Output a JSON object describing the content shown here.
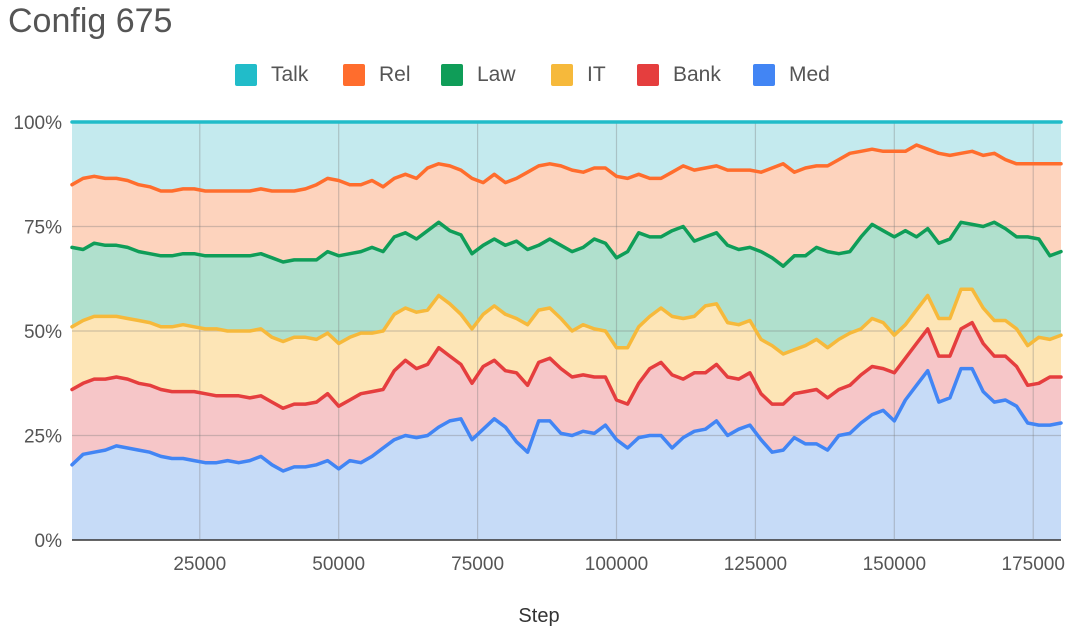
{
  "title": "Config 675",
  "chart_data": {
    "type": "area",
    "stacked": true,
    "percent": true,
    "title": "Config 675",
    "xlabel": "Step",
    "ylabel": "",
    "xlim": [
      2000,
      180000
    ],
    "ylim": [
      0,
      100
    ],
    "x_ticks": [
      25000,
      50000,
      75000,
      100000,
      125000,
      150000,
      175000
    ],
    "y_ticks": [
      "0%",
      "25%",
      "50%",
      "75%",
      "100%"
    ],
    "grid": true,
    "legend_position": "top",
    "x": [
      2000,
      4000,
      6000,
      8000,
      10000,
      12000,
      14000,
      16000,
      18000,
      20000,
      22000,
      24000,
      26000,
      28000,
      30000,
      32000,
      34000,
      36000,
      38000,
      40000,
      42000,
      44000,
      46000,
      48000,
      50000,
      52000,
      54000,
      56000,
      58000,
      60000,
      62000,
      64000,
      66000,
      68000,
      70000,
      72000,
      74000,
      76000,
      78000,
      80000,
      82000,
      84000,
      86000,
      88000,
      90000,
      92000,
      94000,
      96000,
      98000,
      100000,
      102000,
      104000,
      106000,
      108000,
      110000,
      112000,
      114000,
      116000,
      118000,
      120000,
      122000,
      124000,
      126000,
      128000,
      130000,
      132000,
      134000,
      136000,
      138000,
      140000,
      142000,
      144000,
      146000,
      148000,
      150000,
      152000,
      154000,
      156000,
      158000,
      160000,
      162000,
      164000,
      166000,
      168000,
      170000,
      172000,
      174000,
      176000,
      178000,
      180000
    ],
    "cumulative_top_boundaries": {
      "Med": [
        18,
        20.5,
        21,
        21.5,
        22.5,
        22,
        21.5,
        21,
        20,
        19.5,
        19.5,
        19,
        18.5,
        18.5,
        19,
        18.5,
        19,
        20,
        18,
        16.5,
        17.5,
        17.5,
        18,
        19,
        17,
        19,
        18.5,
        20,
        22,
        24,
        25,
        24.5,
        25,
        27,
        28.5,
        29,
        24,
        26.5,
        29,
        27,
        23.5,
        21,
        28.5,
        28.5,
        25.5,
        25,
        26,
        25.5,
        27.5,
        24,
        22,
        24.5,
        25,
        25,
        22,
        24.5,
        26,
        26.5,
        28.5,
        25,
        26.5,
        27.5,
        24,
        21,
        21.5,
        24.5,
        23,
        23,
        21.5,
        25,
        25.5,
        28,
        30,
        31,
        28.5,
        33.5,
        37,
        40.5,
        33,
        34,
        41,
        41,
        35.5,
        33,
        33.5,
        32,
        28,
        27.5,
        27.5,
        28
      ],
      "Bank": [
        36,
        37.5,
        38.5,
        38.5,
        39,
        38.5,
        37.5,
        37,
        36,
        35.5,
        35.5,
        35.5,
        35,
        34.5,
        34.5,
        34.5,
        34,
        34.5,
        33,
        31.5,
        32.5,
        32.5,
        33,
        35,
        32,
        33.5,
        35,
        35.5,
        36,
        40.5,
        43,
        41,
        42,
        46,
        44,
        42,
        37.5,
        41.5,
        43,
        40.5,
        40,
        37,
        42.5,
        43.5,
        41,
        39,
        39.5,
        39,
        39,
        33.5,
        32.5,
        37.5,
        41,
        42.5,
        39.5,
        38.5,
        40,
        40,
        42,
        39,
        38.5,
        40,
        35,
        32.5,
        32.5,
        35,
        35.5,
        36,
        34,
        36,
        37,
        39.5,
        41.5,
        41,
        40,
        43.5,
        47,
        50.5,
        44,
        44,
        50.5,
        52,
        47,
        44,
        44,
        41.5,
        37,
        37.5,
        39,
        39
      ],
      "IT": [
        51,
        52.5,
        53.5,
        53.5,
        53.5,
        53,
        52.5,
        52,
        51,
        51,
        51.5,
        51,
        50.5,
        50.5,
        50,
        50,
        50,
        50.5,
        48.5,
        47.5,
        48.5,
        48.5,
        48,
        49.5,
        47,
        48.5,
        49.5,
        49.5,
        50,
        54,
        55.5,
        54.5,
        55,
        58.5,
        56.5,
        54,
        50.5,
        54,
        56,
        54,
        53,
        51.5,
        55,
        55.5,
        53,
        50,
        51.5,
        50.5,
        50,
        46,
        46,
        51,
        53.5,
        55.5,
        53.5,
        53,
        53.5,
        56,
        56.5,
        52,
        51.5,
        52.5,
        48,
        46.5,
        44.5,
        45.5,
        46.5,
        48,
        46,
        48,
        49.5,
        50.5,
        53,
        52,
        49,
        51.5,
        55,
        58.5,
        53,
        53,
        60,
        60,
        55.5,
        52.5,
        52.5,
        50.5,
        46.5,
        48.5,
        48,
        49
      ],
      "Law": [
        70,
        69.5,
        71,
        70.5,
        70.5,
        70,
        69,
        68.5,
        68,
        68,
        68.5,
        68.5,
        68,
        68,
        68,
        68,
        68,
        68.5,
        67.5,
        66.5,
        67,
        67,
        67,
        69,
        68,
        68.5,
        69,
        70,
        69,
        72.5,
        73.5,
        72,
        74,
        76,
        74,
        73,
        68.5,
        70.5,
        72,
        70.5,
        71.5,
        69.5,
        70.5,
        72,
        70.5,
        69,
        70,
        72,
        71,
        67.5,
        69,
        73.5,
        72.5,
        72.5,
        74,
        75,
        71.5,
        72.5,
        73.5,
        70.5,
        69.5,
        70,
        69,
        67.5,
        65.5,
        68,
        68,
        70,
        69,
        68.5,
        69,
        72.5,
        75.5,
        74,
        72.5,
        74,
        72.5,
        74.5,
        71,
        72,
        76,
        75.5,
        75,
        76,
        74.5,
        72.5,
        72.5,
        72,
        68,
        69
      ],
      "Rel": [
        85,
        86.5,
        87,
        86.5,
        86.5,
        86,
        85,
        84.5,
        83.5,
        83.5,
        84,
        84,
        83.5,
        83.5,
        83.5,
        83.5,
        83.5,
        84,
        83.5,
        83.5,
        83.5,
        84,
        85,
        86.5,
        86,
        85,
        85,
        86,
        84.5,
        86.5,
        87.5,
        86.5,
        89,
        90,
        89.5,
        88.5,
        86.5,
        85.5,
        87.5,
        85.5,
        86.5,
        88,
        89.5,
        90,
        89.5,
        88.5,
        88,
        89,
        89,
        87,
        86.5,
        87.5,
        86.5,
        86.5,
        88,
        89.5,
        88.5,
        89,
        89.5,
        88.5,
        88.5,
        88.5,
        88,
        89,
        90,
        88,
        89,
        89.5,
        89.5,
        91,
        92.5,
        93,
        93.5,
        93,
        93,
        93,
        94.5,
        93.5,
        92.5,
        92,
        92.5,
        93,
        92,
        92.5,
        91,
        90,
        90,
        90,
        90,
        90
      ],
      "Talk": [
        100,
        100,
        100,
        100,
        100,
        100,
        100,
        100,
        100,
        100,
        100,
        100,
        100,
        100,
        100,
        100,
        100,
        100,
        100,
        100,
        100,
        100,
        100,
        100,
        100,
        100,
        100,
        100,
        100,
        100,
        100,
        100,
        100,
        100,
        100,
        100,
        100,
        100,
        100,
        100,
        100,
        100,
        100,
        100,
        100,
        100,
        100,
        100,
        100,
        100,
        100,
        100,
        100,
        100,
        100,
        100,
        100,
        100,
        100,
        100,
        100,
        100,
        100,
        100,
        100,
        100,
        100,
        100,
        100,
        100,
        100,
        100,
        100,
        100,
        100,
        100,
        100,
        100,
        100,
        100,
        100,
        100,
        100,
        100,
        100,
        100,
        100,
        100,
        100,
        100
      ]
    },
    "series": [
      {
        "name": "Med",
        "color": "#4285f4",
        "fill": "#c6dbf7"
      },
      {
        "name": "Bank",
        "color": "#e53e3e",
        "fill": "#f6c6c8"
      },
      {
        "name": "IT",
        "color": "#f6b93b",
        "fill": "#fde5b6"
      },
      {
        "name": "Law",
        "color": "#0f9d58",
        "fill": "#b0e0cd"
      },
      {
        "name": "Rel",
        "color": "#ff6d2d",
        "fill": "#fdd3bd"
      },
      {
        "name": "Talk",
        "color": "#21bcc9",
        "fill": "#c4eaee"
      }
    ],
    "legend_order": [
      "Talk",
      "Rel",
      "Law",
      "IT",
      "Bank",
      "Med"
    ]
  }
}
